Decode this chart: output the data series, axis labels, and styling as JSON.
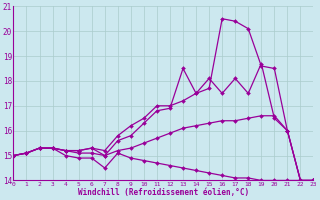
{
  "xlabel": "Windchill (Refroidissement éolien,°C)",
  "bg_color": "#cce8ef",
  "line_color": "#990099",
  "grid_color": "#aacccc",
  "xmin": 0,
  "xmax": 23,
  "ymin": 14,
  "ymax": 21,
  "series": [
    {
      "x": [
        0,
        1,
        2,
        3,
        4,
        5,
        6,
        7,
        8,
        9,
        10,
        11,
        12,
        13,
        14,
        15,
        16,
        17,
        18,
        19,
        20,
        21,
        22,
        23
      ],
      "y": [
        15.0,
        15.1,
        15.3,
        15.3,
        15.2,
        15.2,
        15.3,
        15.2,
        15.8,
        16.2,
        16.5,
        17.0,
        17.0,
        17.2,
        17.5,
        17.7,
        20.5,
        20.4,
        20.1,
        18.6,
        18.5,
        16.0,
        14.0,
        14.0
      ]
    },
    {
      "x": [
        0,
        1,
        2,
        3,
        4,
        5,
        6,
        7,
        8,
        9,
        10,
        11,
        12,
        13,
        14,
        15,
        16,
        17,
        18,
        19,
        20,
        21,
        22,
        23
      ],
      "y": [
        15.0,
        15.1,
        15.3,
        15.3,
        15.2,
        15.2,
        15.3,
        15.0,
        15.6,
        15.8,
        16.3,
        16.8,
        16.9,
        18.5,
        17.5,
        18.1,
        17.5,
        18.1,
        17.5,
        18.7,
        16.5,
        16.0,
        14.0,
        14.0
      ]
    },
    {
      "x": [
        0,
        1,
        2,
        3,
        4,
        5,
        6,
        7,
        8,
        9,
        10,
        11,
        12,
        13,
        14,
        15,
        16,
        17,
        18,
        19,
        20,
        21,
        22,
        23
      ],
      "y": [
        15.0,
        15.1,
        15.3,
        15.3,
        15.2,
        15.1,
        15.1,
        15.0,
        15.2,
        15.3,
        15.5,
        15.7,
        15.9,
        16.1,
        16.2,
        16.3,
        16.4,
        16.4,
        16.5,
        16.6,
        16.6,
        16.0,
        14.0,
        14.0
      ]
    },
    {
      "x": [
        0,
        1,
        2,
        3,
        4,
        5,
        6,
        7,
        8,
        9,
        10,
        11,
        12,
        13,
        14,
        15,
        16,
        17,
        18,
        19,
        20,
        21,
        22,
        23
      ],
      "y": [
        15.0,
        15.1,
        15.3,
        15.3,
        15.0,
        14.9,
        14.9,
        14.5,
        15.1,
        14.9,
        14.8,
        14.7,
        14.6,
        14.5,
        14.4,
        14.3,
        14.2,
        14.1,
        14.1,
        14.0,
        14.0,
        14.0,
        14.0,
        14.0
      ]
    }
  ]
}
